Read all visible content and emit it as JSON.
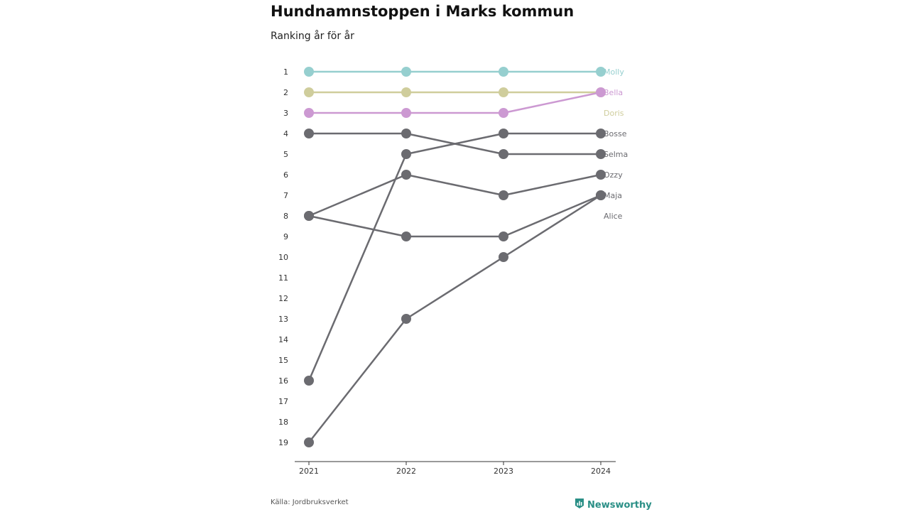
{
  "header": {
    "title": "Hundnamnstoppen i Marks kommun",
    "subtitle": "Ranking år för år"
  },
  "footer": {
    "source": "Källa: Jordbruksverket",
    "brand": "Newsworthy",
    "brand_icon": "bar-chart-icon"
  },
  "chart_data": {
    "type": "line",
    "title": "Hundnamnstoppen i Marks kommun",
    "subtitle": "Ranking år för år",
    "x": [
      "2021",
      "2022",
      "2023",
      "2024"
    ],
    "y_ticks": [
      1,
      2,
      3,
      4,
      5,
      6,
      7,
      8,
      9,
      10,
      11,
      12,
      13,
      14,
      15,
      16,
      17,
      18,
      19
    ],
    "ylim": [
      1,
      19
    ],
    "y_reversed": true,
    "grid": false,
    "series": [
      {
        "name": "Selma",
        "values": [
          4,
          4,
          5,
          5
        ],
        "color": "#6b6b70"
      },
      {
        "name": "Bosse",
        "values": [
          16,
          5,
          4,
          4
        ],
        "color": "#6b6b70"
      },
      {
        "name": "Ozzy",
        "values": [
          8,
          6,
          7,
          6
        ],
        "color": "#6b6b70"
      },
      {
        "name": "Maja",
        "values": [
          8,
          9,
          9,
          7
        ],
        "color": "#6b6b70"
      },
      {
        "name": "Alice",
        "values": [
          19,
          13,
          10,
          7
        ],
        "color": "#6b6b70"
      },
      {
        "name": "Molly",
        "values": [
          1,
          1,
          1,
          1
        ],
        "color": "#96cfcf"
      },
      {
        "name": "Doris",
        "values": [
          2,
          2,
          2,
          2
        ],
        "color": "#cfcd9c"
      },
      {
        "name": "Bella",
        "values": [
          3,
          3,
          3,
          2
        ],
        "color": "#cc99d2"
      }
    ],
    "labels": [
      {
        "text": "Molly",
        "rank": 1,
        "color": "#96cfcf"
      },
      {
        "text": "Bella",
        "rank": 2,
        "color": "#cc99d2"
      },
      {
        "text": "Doris",
        "rank": 3,
        "color": "#cfcd9c"
      },
      {
        "text": "Bosse",
        "rank": 4,
        "color": "#6b6b70"
      },
      {
        "text": "Selma",
        "rank": 5,
        "color": "#6b6b70"
      },
      {
        "text": "Ozzy",
        "rank": 6,
        "color": "#6b6b70"
      },
      {
        "text": "Maja",
        "rank": 7,
        "color": "#6b6b70"
      },
      {
        "text": "Alice",
        "rank": 8,
        "color": "#6b6b70"
      }
    ]
  }
}
